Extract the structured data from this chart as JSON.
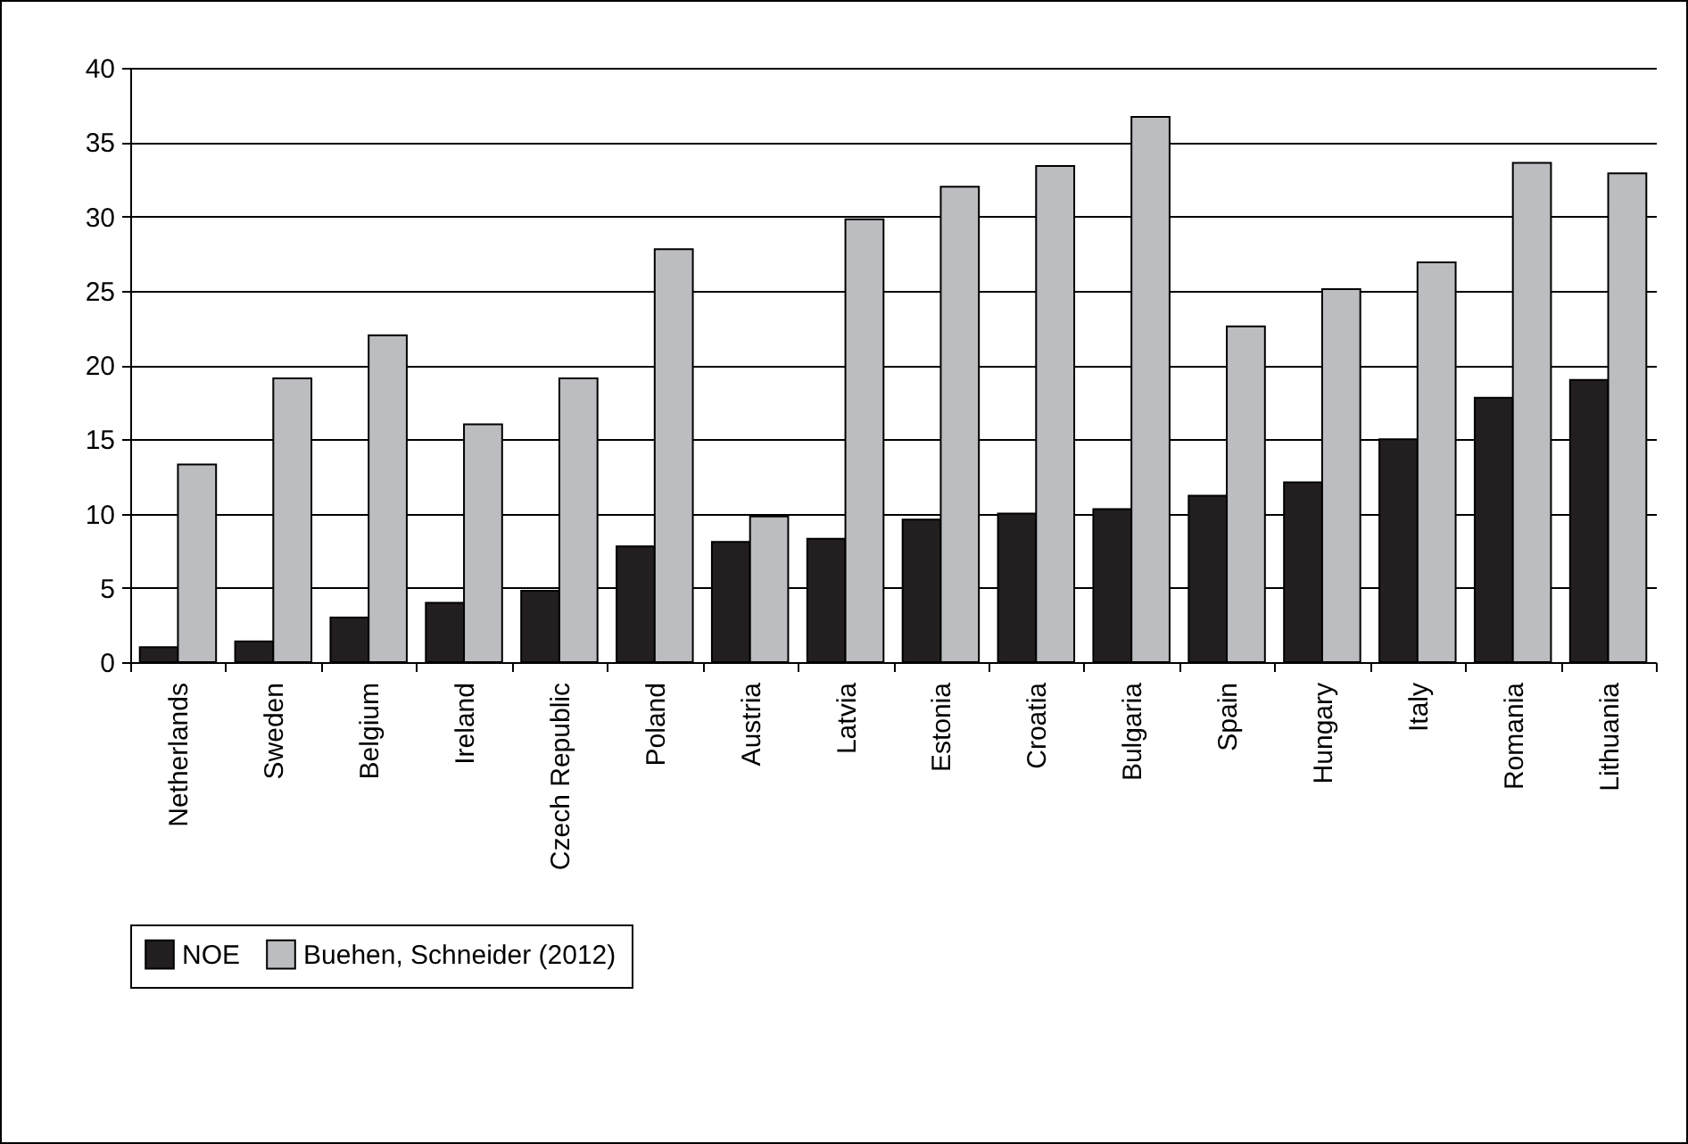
{
  "chart_data": {
    "type": "bar",
    "categories": [
      "Netherlands",
      "Sweden",
      "Belgium",
      "Ireland",
      "Czech Republic",
      "Poland",
      "Austria",
      "Latvia",
      "Estonia",
      "Croatia",
      "Bulgaria",
      "Spain",
      "Hungary",
      "Italy",
      "Romania",
      "Lithuania"
    ],
    "series": [
      {
        "name": "NOE",
        "color": "#231f20",
        "values": [
          1.0,
          1.4,
          3.0,
          4.0,
          4.8,
          7.8,
          8.1,
          8.3,
          9.6,
          10.0,
          10.3,
          11.2,
          12.1,
          15.0,
          17.8,
          19.0
        ]
      },
      {
        "name": "Buehen, Schneider (2012)",
        "color": "#bcbdc0",
        "values": [
          13.3,
          19.1,
          22.0,
          16.0,
          19.1,
          27.8,
          9.8,
          29.8,
          32.0,
          33.4,
          36.7,
          22.6,
          25.1,
          26.9,
          33.6,
          32.9
        ]
      }
    ],
    "ylim": [
      0,
      40
    ],
    "yticks": [
      0,
      5,
      10,
      15,
      20,
      25,
      30,
      35,
      40
    ],
    "grid": "y",
    "legend": "bottom"
  }
}
